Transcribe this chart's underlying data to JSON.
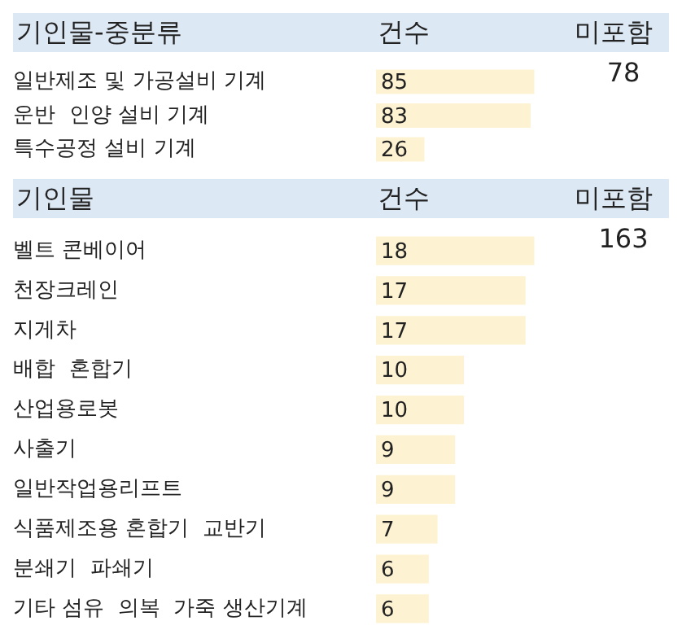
{
  "chart_data": [
    {
      "type": "bar",
      "orientation": "horizontal",
      "title": "기인물-중분류",
      "xlabel": "건수",
      "annotations": [
        "미포함",
        "78"
      ],
      "categories": [
        "일반제조 및 가공설비 기계",
        "운반  인양 설비 기계",
        "특수공정 설비 기계"
      ],
      "values": [
        85,
        83,
        26
      ],
      "color": "#fdf3d2",
      "data_labels": true
    },
    {
      "type": "bar",
      "orientation": "horizontal",
      "title": "기인물",
      "xlabel": "건수",
      "annotations": [
        "미포함",
        "163"
      ],
      "categories": [
        "벨트 콘베이어",
        "천장크레인",
        "지게차",
        "배합  혼합기",
        "산업용로봇",
        "사출기",
        "일반작업용리프트",
        "식품제조용 혼합기  교반기",
        "분쇄기  파쇄기",
        "기타 섬유  의복  가죽 생산기계"
      ],
      "values": [
        18,
        17,
        17,
        10,
        10,
        9,
        9,
        7,
        6,
        6
      ],
      "color": "#fdf3d2",
      "data_labels": true
    }
  ]
}
